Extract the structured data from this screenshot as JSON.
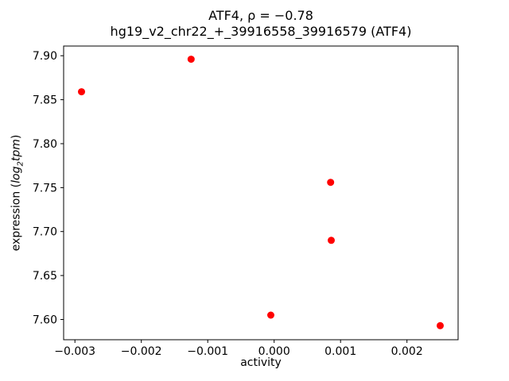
{
  "chart_data": {
    "type": "scatter",
    "title": "ATF4, ρ = −0.78",
    "subtitle": "hg19_v2_chr22_+_39916558_39916579 (ATF4)",
    "xlabel": "activity",
    "ylabel": "expression (log2tpm)",
    "ylabel_parts": [
      "expression (",
      "log",
      "2",
      "tpm",
      ")"
    ],
    "marker_color": "#ff0000",
    "grid": false,
    "legend": "none",
    "xlim": [
      -0.00317,
      0.00277
    ],
    "ylim": [
      7.577,
      7.911
    ],
    "xticks": [
      {
        "value": -0.003,
        "label": "−0.003"
      },
      {
        "value": -0.002,
        "label": "−0.002"
      },
      {
        "value": -0.001,
        "label": "−0.001"
      },
      {
        "value": 0.0,
        "label": "0.000"
      },
      {
        "value": 0.001,
        "label": "0.001"
      },
      {
        "value": 0.002,
        "label": "0.002"
      }
    ],
    "yticks": [
      {
        "value": 7.6,
        "label": "7.60"
      },
      {
        "value": 7.65,
        "label": "7.65"
      },
      {
        "value": 7.7,
        "label": "7.70"
      },
      {
        "value": 7.75,
        "label": "7.75"
      },
      {
        "value": 7.8,
        "label": "7.80"
      },
      {
        "value": 7.85,
        "label": "7.85"
      },
      {
        "value": 7.9,
        "label": "7.90"
      }
    ],
    "points": [
      {
        "x": -0.0029,
        "y": 7.859
      },
      {
        "x": -0.00125,
        "y": 7.896
      },
      {
        "x": -5e-05,
        "y": 7.605
      },
      {
        "x": 0.00085,
        "y": 7.756
      },
      {
        "x": 0.00086,
        "y": 7.69
      },
      {
        "x": 0.0025,
        "y": 7.593
      }
    ]
  }
}
